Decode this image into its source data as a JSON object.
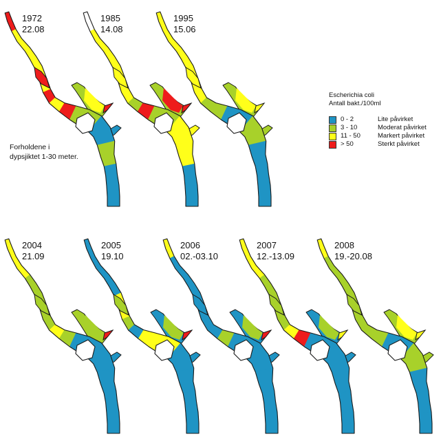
{
  "colors": {
    "lite": "#1f94c4",
    "moderat": "#a8d12a",
    "markert": "#ffff1a",
    "sterkt": "#ee1c1c",
    "outline": "#1a1a1a",
    "ikke_malt": "#ffffff"
  },
  "note": {
    "line1": "Forholdene i",
    "line2": "dypsjiktet 1-30 meter."
  },
  "legend": {
    "title1": "Escherichia coli",
    "title2": "Antall bakt./100ml",
    "items": [
      {
        "range": "0 - 2",
        "label": "Lite påvirket",
        "color_key": "lite"
      },
      {
        "range": "3 - 10",
        "label": "Moderat påvirket",
        "color_key": "moderat"
      },
      {
        "range": "11 - 50",
        "label": "Markert påvirket",
        "color_key": "markert"
      },
      {
        "range": "> 50",
        "label": "Sterkt påvirket",
        "color_key": "sterkt"
      }
    ]
  },
  "maps": [
    {
      "year": "1972",
      "date": "22.08",
      "segments": [
        "sterkt",
        "markert",
        "markert",
        "markert",
        "sterkt",
        "markert",
        "sterkt",
        "moderat",
        "lite",
        "moderat",
        "lite",
        "lite"
      ],
      "arm_left": "moderat",
      "arm_mid": "markert",
      "arm_tip": "sterkt"
    },
    {
      "year": "1985",
      "date": "14.08",
      "segments": [
        "ikke_malt",
        "markert",
        "markert",
        "markert",
        "markert",
        "moderat",
        "sterkt",
        "moderat",
        "markert",
        "markert",
        "lite",
        "lite"
      ],
      "arm_left": "moderat",
      "arm_mid": "sterkt",
      "arm_tip": "sterkt"
    },
    {
      "year": "1995",
      "date": "15.06",
      "segments": [
        "markert",
        "markert",
        "markert",
        "markert",
        "markert",
        "moderat",
        "moderat",
        "lite",
        "moderat",
        "lite",
        "lite",
        "lite"
      ],
      "arm_left": "moderat",
      "arm_mid": "markert",
      "arm_tip": "markert"
    },
    {
      "year": "2004",
      "date": "21.09",
      "segments": [
        "markert",
        "markert",
        "moderat",
        "moderat",
        "moderat",
        "markert",
        "moderat",
        "lite",
        "lite",
        "lite",
        "lite",
        "lite"
      ],
      "arm_left": "moderat",
      "arm_mid": "moderat",
      "arm_tip": "sterkt"
    },
    {
      "year": "2005",
      "date": "19.10",
      "segments": [
        "lite",
        "lite",
        "lite",
        "markert",
        "moderat",
        "lite",
        "markert",
        "markert",
        "lite",
        "lite",
        "lite",
        "lite"
      ],
      "arm_left": "lite",
      "arm_mid": "moderat",
      "arm_tip": "sterkt"
    },
    {
      "year": "2006",
      "date": "02.-03.10",
      "segments": [
        "markert",
        "lite",
        "lite",
        "lite",
        "lite",
        "lite",
        "moderat",
        "lite",
        "lite",
        "lite",
        "lite",
        "lite"
      ],
      "arm_left": "lite",
      "arm_mid": "moderat",
      "arm_tip": "sterkt"
    },
    {
      "year": "2007",
      "date": "12.-13.09",
      "segments": [
        "markert",
        "markert",
        "moderat",
        "moderat",
        "moderat",
        "markert",
        "sterkt",
        "lite",
        "lite",
        "lite",
        "lite",
        "lite"
      ],
      "arm_left": "lite",
      "arm_mid": "moderat",
      "arm_tip": "markert"
    },
    {
      "year": "2008",
      "date": "19.-20.08",
      "segments": [
        "markert",
        "moderat",
        "moderat",
        "moderat",
        "moderat",
        "moderat",
        "moderat",
        "lite",
        "moderat",
        "lite",
        "lite",
        "lite"
      ],
      "arm_left": "moderat",
      "arm_mid": "markert",
      "arm_tip": "markert"
    }
  ]
}
